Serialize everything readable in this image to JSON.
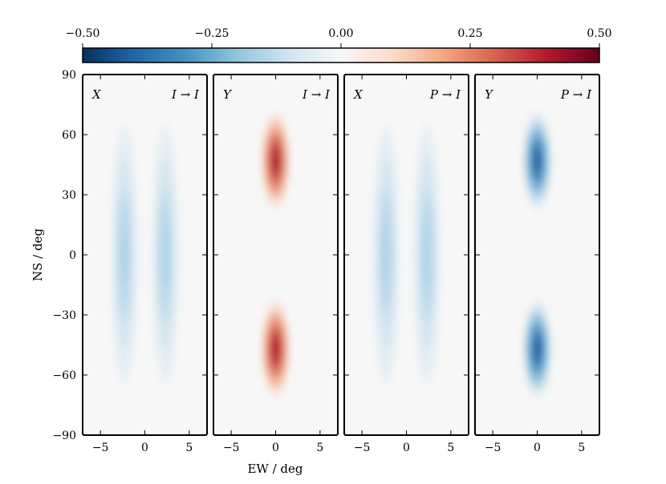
{
  "chart_data": {
    "type": "heatmap",
    "colorbar": {
      "colormap": "RdBu_r",
      "range": [
        -0.5,
        0.5
      ],
      "tick_values": [
        -0.5,
        -0.25,
        0.0,
        0.25,
        0.5
      ],
      "tick_labels": [
        "−0.50",
        "−0.25",
        "0.00",
        "0.25",
        "0.50"
      ],
      "colors": {
        "min": "#053061",
        "mid": "#f7f7f7",
        "max": "#67001f"
      }
    },
    "xlabel": "EW / deg",
    "ylabel": "NS / deg",
    "xlim": [
      -7,
      7
    ],
    "ylim": [
      -90,
      90
    ],
    "x_ticks": [
      -5,
      0,
      5
    ],
    "x_tick_labels": [
      "−5",
      "0",
      "5"
    ],
    "y_ticks": [
      -90,
      -60,
      -30,
      0,
      30,
      60,
      90
    ],
    "y_tick_labels": [
      "−90",
      "−60",
      "−30",
      "0",
      "30",
      "60",
      "90"
    ],
    "panels": [
      {
        "label_left": "X",
        "label_right": "I → I",
        "blobs": [
          {
            "x": -2.3,
            "y": 0,
            "sx": 0.9,
            "sy": 40,
            "value": -0.16
          },
          {
            "x": 2.3,
            "y": 0,
            "sx": 0.9,
            "sy": 40,
            "value": -0.16
          }
        ]
      },
      {
        "label_left": "Y",
        "label_right": "I → I",
        "blobs": [
          {
            "x": 0,
            "y": 47,
            "sx": 0.9,
            "sy": 13,
            "value": 0.42
          },
          {
            "x": 0,
            "y": -47,
            "sx": 0.9,
            "sy": 13,
            "value": 0.42
          }
        ]
      },
      {
        "label_left": "X",
        "label_right": "P → I",
        "blobs": [
          {
            "x": -2.3,
            "y": 0,
            "sx": 0.9,
            "sy": 40,
            "value": -0.16
          },
          {
            "x": 2.3,
            "y": 0,
            "sx": 0.9,
            "sy": 40,
            "value": -0.16
          }
        ]
      },
      {
        "label_left": "Y",
        "label_right": "P → I",
        "blobs": [
          {
            "x": 0,
            "y": 47,
            "sx": 0.9,
            "sy": 13,
            "value": -0.42
          },
          {
            "x": 0,
            "y": -47,
            "sx": 0.9,
            "sy": 13,
            "value": -0.42
          }
        ]
      }
    ]
  }
}
